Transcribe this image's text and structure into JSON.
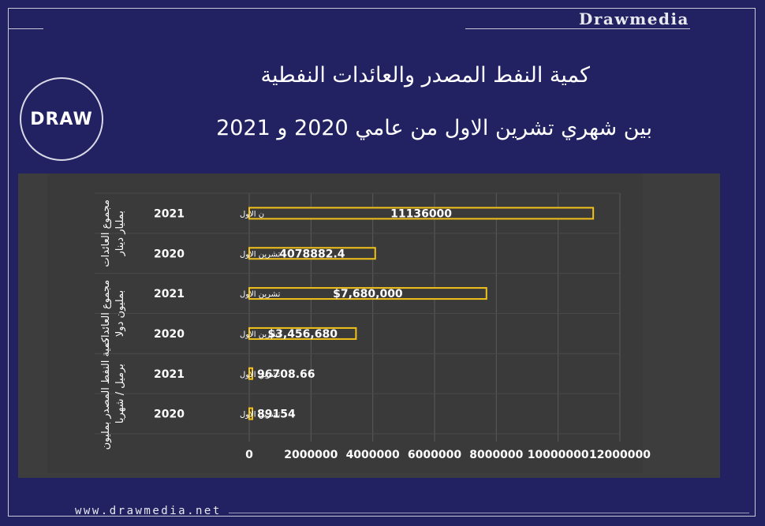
{
  "brand": {
    "name": "Drawmedia",
    "url": "www.drawmedia.net"
  },
  "logo": {
    "mark": "DRAW"
  },
  "header": {
    "title_line1": "كمية النفط المصدر والعائدات النفطية",
    "title_line2": "بين شهري تشرين الاول من عامي 2020 و 2021"
  },
  "chart_data": {
    "type": "bar",
    "orientation": "horizontal",
    "bars": [
      {
        "group": "مجموع العائدات بمليار دينار",
        "year": "2021",
        "month": "ن الاول",
        "value": 11136000,
        "label": "11136000"
      },
      {
        "group": "مجموع العائدات بمليار دينار",
        "year": "2020",
        "month": "تشرين الاول",
        "value": 4078882.4,
        "label": "4078882.4"
      },
      {
        "group": "مجموع العائدات بمليون دولا",
        "year": "2021",
        "month": "تشرين الاول",
        "value": 7680000,
        "label": "$7,680,000"
      },
      {
        "group": "مجموع العائدات بمليون دولا",
        "year": "2020",
        "month": "تشرين الاول",
        "value": 3456680,
        "label": "$3,456,680"
      },
      {
        "group": "كمية النفط المصدر بمليون برميل / شهريا",
        "year": "2021",
        "month": "تشرين الاول",
        "value": 96708.66,
        "label": "96708.66"
      },
      {
        "group": "كمية النفط المصدر بمليون برميل / شهريا",
        "year": "2020",
        "month": "تشرين الاول",
        "value": 89154,
        "label": "89154"
      }
    ],
    "groups": [
      "مجموع العائدات بمليار دينار",
      "مجموع العائدات بمليون دولا",
      "كمية النفط المصدر بمليون برميل / شهريا"
    ],
    "xticks": [
      "0",
      "2000000",
      "4000000",
      "6000000",
      "8000000",
      "10000000",
      "12000000"
    ],
    "xlim": [
      0,
      12000000
    ],
    "grid": true,
    "colors": {
      "bar_fill": "#3a3a3a",
      "bar_border": "#f2c21b",
      "grid": "#5a5a5a",
      "text": "#ffffff",
      "bg": "#3d3d3d"
    }
  }
}
